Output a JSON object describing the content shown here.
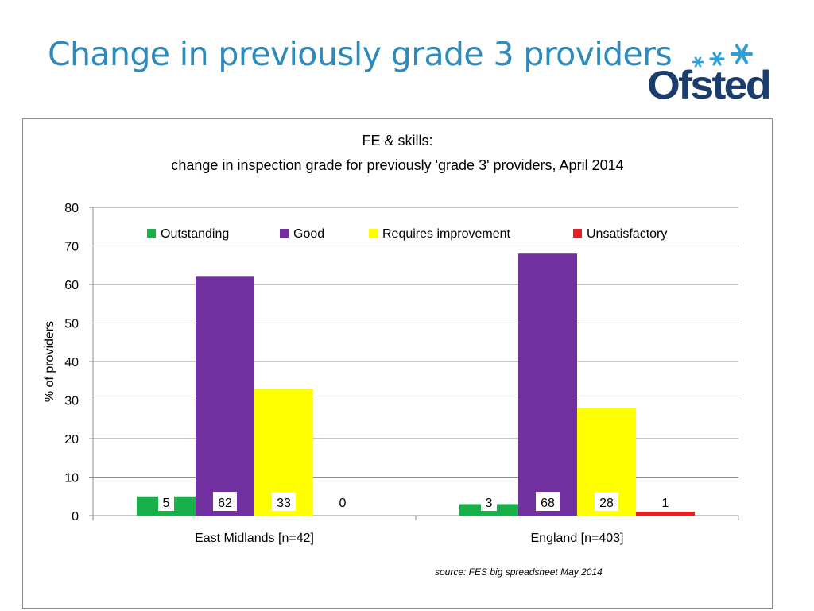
{
  "slide": {
    "title": "Change in previously grade 3 providers",
    "logo_text": "Ofsted"
  },
  "colors": {
    "title": "#2e8ab8",
    "logo": "#1b3d6d",
    "logo_stars": "#2e9fd6"
  },
  "chart_data": {
    "type": "bar",
    "title": "FE & skills:",
    "subtitle": "change in inspection grade for previously 'grade 3' providers, April 2014",
    "ylabel": "% of providers",
    "xlabel": "",
    "ylim": [
      0,
      80
    ],
    "yticks": [
      0,
      10,
      20,
      30,
      40,
      50,
      60,
      70,
      80
    ],
    "grid": true,
    "legend_position": "top",
    "categories": [
      "East Midlands [n=42]",
      "England [n=403]"
    ],
    "series": [
      {
        "name": "Outstanding",
        "color": "#18b04a",
        "values": [
          5,
          3
        ],
        "labels": [
          "5",
          "3"
        ]
      },
      {
        "name": "Good",
        "color": "#7030a0",
        "values": [
          62,
          68
        ],
        "labels": [
          "62",
          "68"
        ]
      },
      {
        "name": "Requires improvement",
        "color": "#ffff00",
        "values": [
          33,
          28
        ],
        "labels": [
          "33",
          "28"
        ]
      },
      {
        "name": "Unsatisfactory",
        "color": "#e81e25",
        "values": [
          0,
          1
        ],
        "labels": [
          "0",
          "1"
        ]
      }
    ],
    "annotations": [
      "source: FES big spreadsheet May 2014"
    ]
  }
}
